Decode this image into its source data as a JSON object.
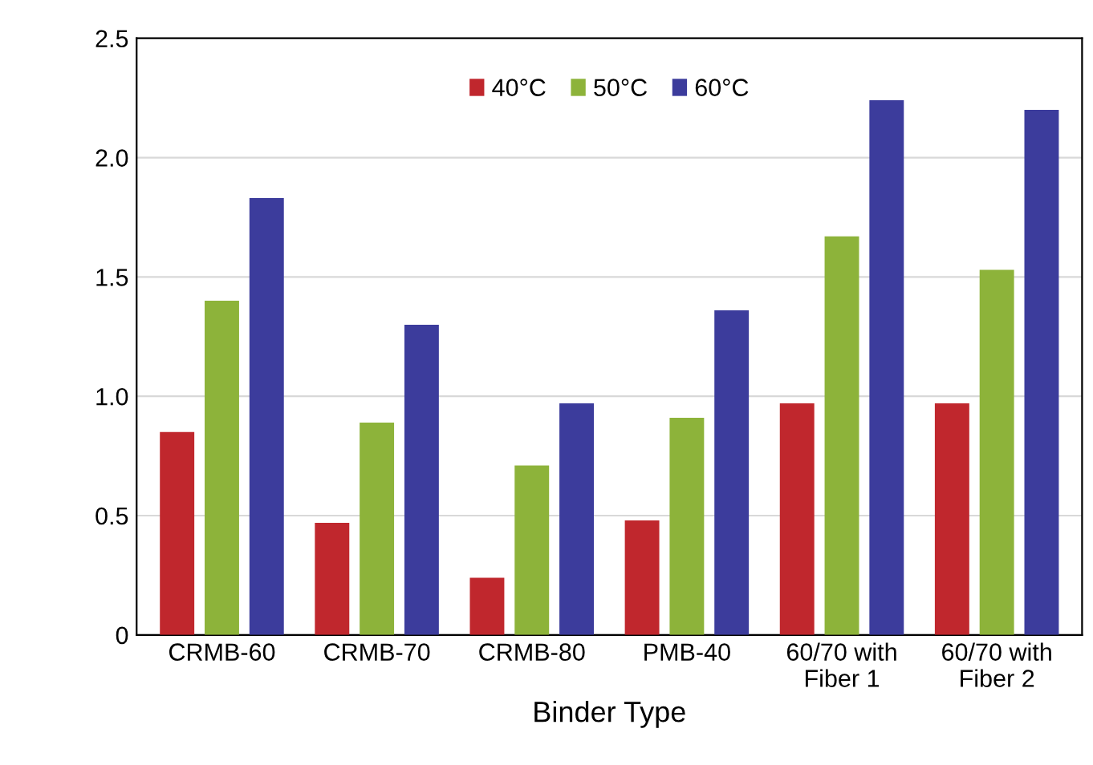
{
  "chart_data": {
    "type": "bar",
    "xlabel": "Binder Type",
    "categories": [
      "CRMB-60",
      "CRMB-70",
      "CRMB-80",
      "PMB-40",
      "60/70 with\nFiber 1",
      "60/70 with\nFiber 2"
    ],
    "series": [
      {
        "name": "40°C",
        "color": "#c0272d",
        "values": [
          0.85,
          0.47,
          0.24,
          0.48,
          0.97,
          0.97
        ]
      },
      {
        "name": "50°C",
        "color": "#8db33a",
        "values": [
          1.4,
          0.89,
          0.71,
          0.91,
          1.67,
          1.53
        ]
      },
      {
        "name": "60°C",
        "color": "#3c3c9c",
        "values": [
          1.83,
          1.3,
          0.97,
          1.36,
          2.24,
          2.2
        ]
      }
    ],
    "ylim": [
      0,
      2.5
    ],
    "yticks": [
      0,
      0.5,
      {
        "value": 1.0,
        "label": "1.0"
      },
      1.5,
      {
        "value": 2.0,
        "label": "2.0"
      },
      2.5
    ],
    "grid": "y",
    "legend": "top"
  }
}
